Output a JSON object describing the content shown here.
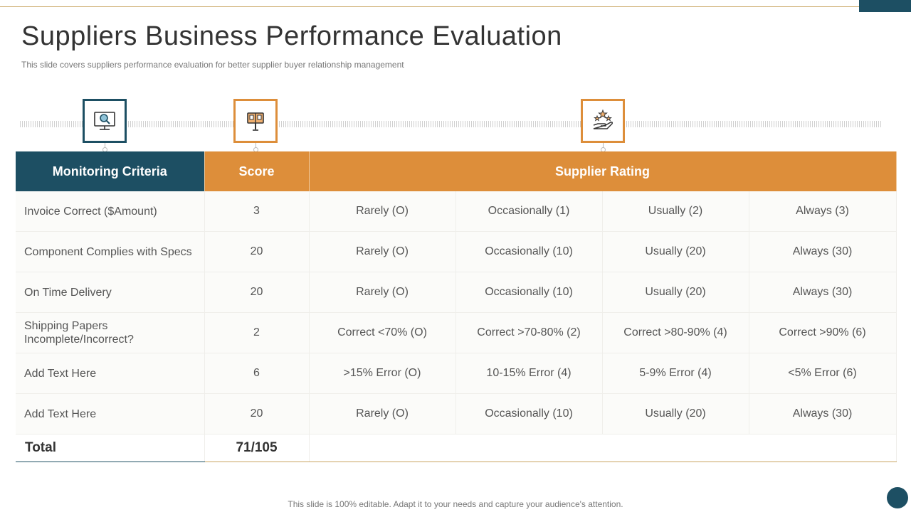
{
  "title": "Suppliers Business Performance Evaluation",
  "subtitle": "This slide covers suppliers performance evaluation for better supplier buyer relationship management",
  "icons": [
    "monitor-search-icon",
    "signpost-icon",
    "hand-stars-icon"
  ],
  "colors": {
    "primary": "#1d4f63",
    "accent": "#dd8e3a",
    "rule": "#c9a560"
  },
  "table": {
    "headers": {
      "criteria": "Monitoring Criteria",
      "score": "Score",
      "rating": "Supplier Rating"
    },
    "rows": [
      {
        "criteria": "Invoice  Correct ($Amount)",
        "score": "3",
        "ratings": [
          "Rarely (O)",
          "Occasionally  (1)",
          "Usually  (2)",
          "Always  (3)"
        ]
      },
      {
        "criteria": "Component Complies with Specs",
        "score": "20",
        "ratings": [
          "Rarely (O)",
          "Occasionally  (10)",
          "Usually  (20)",
          "Always  (30)"
        ]
      },
      {
        "criteria": "On Time Delivery",
        "score": "20",
        "ratings": [
          "Rarely (O)",
          "Occasionally  (10)",
          "Usually  (20)",
          "Always  (30)"
        ]
      },
      {
        "criteria": "Shipping Papers Incomplete/Incorrect?",
        "score": "2",
        "ratings": [
          "Correct <70% (O)",
          "Correct >70-80% (2)",
          "Correct >80-90% (4)",
          "Correct >90% (6)"
        ]
      },
      {
        "criteria": "Add Text Here",
        "score": "6",
        "ratings": [
          ">15% Error (O)",
          "10-15% Error (4)",
          "5-9% Error (4)",
          "<5% Error (6)"
        ]
      },
      {
        "criteria": "Add Text Here",
        "score": "20",
        "ratings": [
          "Rarely (O)",
          "Occasionally  (10)",
          "Usually  (20)",
          "Always  (30)"
        ]
      }
    ],
    "total": {
      "label": "Total",
      "score": "71/105"
    }
  },
  "footer": "This slide is 100% editable. Adapt it to your needs and capture your audience's attention."
}
